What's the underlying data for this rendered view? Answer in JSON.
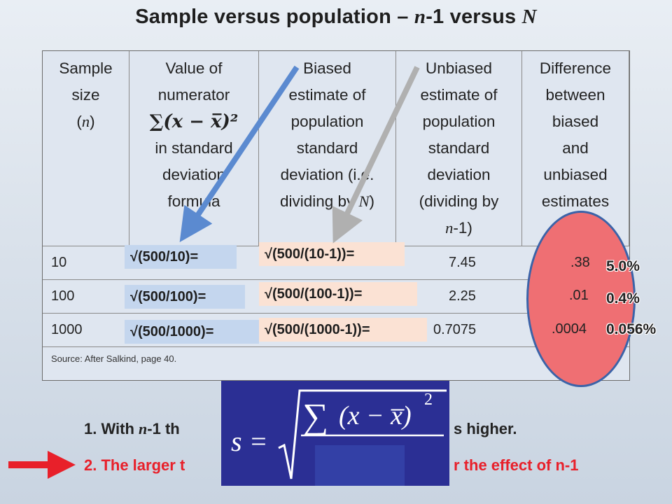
{
  "title": {
    "text": "Sample versus population –",
    "n_part": "n",
    "mid": "-1 versus",
    "N_part": "N"
  },
  "table": {
    "headers": {
      "col1": [
        "Sample",
        "size"
      ],
      "col1_var": "n",
      "col2": [
        "Value of",
        "numerator"
      ],
      "col2_formula": "∑(𝒙 − 𝒙̅)²",
      "col2_rest": [
        "in standard",
        "deviation",
        "formula"
      ],
      "col3": [
        "Biased",
        "estimate of",
        "population",
        "standard",
        "deviation (i.e."
      ],
      "col3_last": "dividing by",
      "col3_var": "N",
      "col4": [
        "Unbiased",
        "estimate of",
        "population",
        "standard",
        "deviation",
        "(dividing by"
      ],
      "col4_var": "n",
      "col4_tail": "-1)",
      "col5": [
        "Difference",
        "between",
        "biased",
        "and",
        "unbiased",
        "estimates"
      ]
    },
    "rows": [
      {
        "n": "10",
        "unbiased": "7.45",
        "diff": ".38",
        "pct": "5.0%",
        "numerator_box": "√(500/10)=",
        "unbiased_box": "√(500/(10-1))="
      },
      {
        "n": "100",
        "unbiased": "2.25",
        "diff": ".01",
        "pct": "0.4%",
        "numerator_box": "√(500/100)=",
        "unbiased_box": "√(500/(100-1))="
      },
      {
        "n": "1000",
        "unbiased": "0.7075",
        "diff": ".0004",
        "pct": "0.056%",
        "numerator_box": "√(500/1000)=",
        "unbiased_box": "√(500/(1000-1))="
      }
    ],
    "source": "Source: After Salkind, page 40."
  },
  "notes": {
    "line1_start": "1. With",
    "line1_var": "n",
    "line1_mid": "-1",
    "line1_a": "th",
    "line1_end": "s higher.",
    "line2_start": "2. The larger t",
    "line2_end": "r the effect of n-1"
  },
  "formula": {
    "lhs": "s =",
    "rad_sum": "∑",
    "rad_body": "(x − x̅)",
    "exp": "2"
  },
  "colors": {
    "arrow_blue": "#5b8ad0",
    "arrow_gray": "#b0b0b0",
    "ellipse_fill": "#ef6f73",
    "ellipse_border": "#3b63a8",
    "red_text": "#e8202a",
    "formula_bg": "#2b2f94"
  }
}
